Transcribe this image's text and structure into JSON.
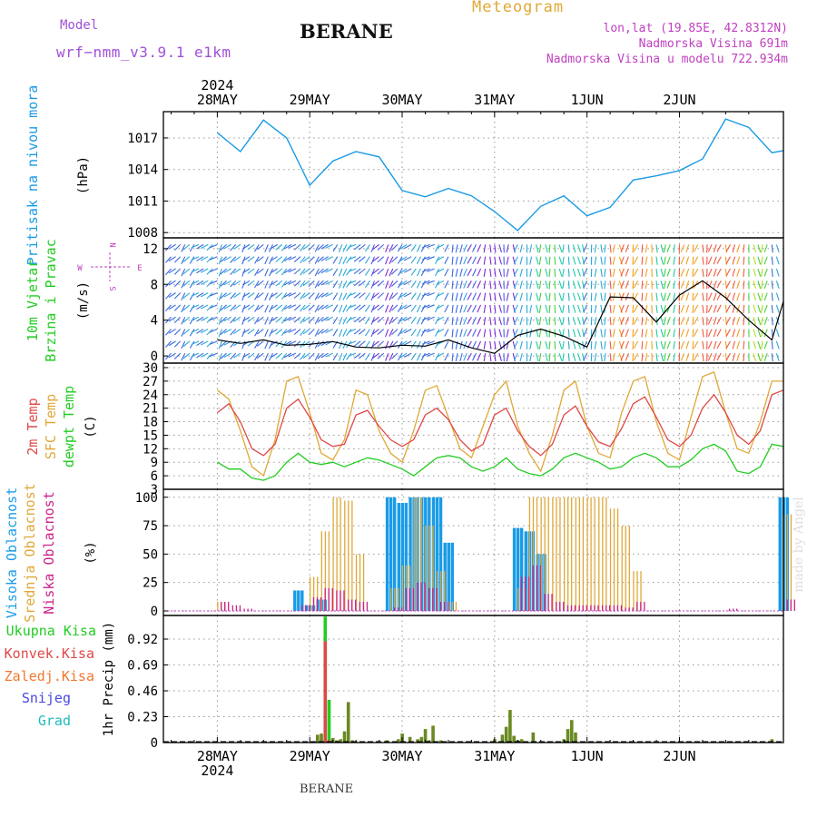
{
  "header": {
    "model_label": "Model",
    "model_name": "wrf−nmm_v3.9.1  e1km",
    "title": "BERANE",
    "meteogram": "Meteogram",
    "lonlat": "lon,lat (19.85E, 42.8312N)",
    "elevation": "Nadmorska Visina 691m",
    "elevation_model": "Nadmorska Visina u modelu 722.934m",
    "watermark": "made by Angel",
    "footer_station": "BERANE"
  },
  "time_axis": {
    "year": "2024",
    "day_labels": [
      "28MAY",
      "29MAY",
      "30MAY",
      "31MAY",
      "1JUN",
      "2JUN"
    ]
  },
  "colors": {
    "pressure": "#1a9be6",
    "sfc_temp": "#e0a838",
    "temp2m": "#e04848",
    "dewpt": "#22cc22",
    "high_cloud": "#1a9be6",
    "mid_cloud": "#e0a838",
    "low_cloud": "#cc2288",
    "total_precip": "#22cc22",
    "conv_precip": "#e04848",
    "frozen_precip": "#f07830",
    "snow": "#4848e0",
    "graupel": "#22bbbb",
    "wind_speed": "#000000"
  },
  "chart_data": [
    {
      "type": "line",
      "name": "pressure",
      "ylabel_color": "Pritisak na nivou mora",
      "unit": "(hPa)",
      "yticks": [
        1008,
        1011,
        1014,
        1017
      ],
      "ylim": [
        1007.5,
        1019.5
      ],
      "x_hours": [
        0,
        6,
        12,
        18,
        24,
        30,
        36,
        42,
        48,
        54,
        60,
        66,
        72,
        78,
        84,
        90,
        96,
        102,
        108,
        114,
        120,
        126,
        132,
        138,
        144,
        147
      ],
      "series": [
        {
          "values": [
            1017.5,
            1015.7,
            1018.7,
            1017.0,
            1012.5,
            1014.8,
            1015.7,
            1015.2,
            1012.0,
            1011.4,
            1012.2,
            1011.5,
            1010.0,
            1008.2,
            1010.5,
            1011.5,
            1009.6,
            1010.4,
            1013.0,
            1013.4,
            1013.9,
            1015.0,
            1018.8,
            1018.0,
            1015.6,
            1015.8
          ]
        }
      ],
      "grid": true
    },
    {
      "type": "line",
      "name": "wind",
      "ylabel_color": [
        "10m Vjetar",
        "Brzina i Pravac"
      ],
      "unit": "(m/s)",
      "compass_labels": [
        "N",
        "E",
        "S",
        "W"
      ],
      "yticks": [
        0,
        4,
        8,
        12
      ],
      "ylim": [
        -0.8,
        13.2
      ],
      "x_hours": [
        0,
        6,
        12,
        18,
        24,
        30,
        36,
        42,
        48,
        54,
        60,
        66,
        72,
        78,
        84,
        90,
        96,
        102,
        108,
        114,
        120,
        126,
        132,
        138,
        144,
        147
      ],
      "series": [
        {
          "name": "speed",
          "values": [
            1.8,
            1.4,
            1.8,
            1.2,
            1.3,
            1.6,
            1.0,
            0.9,
            1.2,
            1.1,
            1.8,
            0.9,
            0.3,
            2.3,
            3.0,
            2.2,
            1.0,
            6.6,
            6.5,
            3.8,
            6.8,
            8.4,
            6.5,
            4.0,
            1.8,
            6.1
          ]
        }
      ],
      "grid": true
    },
    {
      "type": "line",
      "name": "temperature",
      "ylabel_color": [
        "2m Temp",
        "SFC Temp",
        "dewpt Temp"
      ],
      "unit": "(C)",
      "yticks": [
        3,
        6,
        9,
        12,
        15,
        18,
        21,
        24,
        27,
        30
      ],
      "ylim": [
        3,
        31
      ],
      "x_hours": [
        0,
        3,
        6,
        9,
        12,
        15,
        18,
        21,
        24,
        27,
        30,
        33,
        36,
        39,
        42,
        45,
        48,
        51,
        54,
        57,
        60,
        63,
        66,
        69,
        72,
        75,
        78,
        81,
        84,
        87,
        90,
        93,
        96,
        99,
        102,
        105,
        108,
        111,
        114,
        117,
        120,
        123,
        126,
        129,
        132,
        135,
        138,
        141,
        144,
        147
      ],
      "series": [
        {
          "name": "SFC Temp",
          "values": [
            25,
            23,
            16,
            8,
            6,
            14,
            27,
            28,
            20,
            11,
            9.5,
            14,
            25,
            24,
            16,
            11,
            9,
            16,
            25,
            26,
            19,
            12,
            10,
            17,
            24,
            27,
            17,
            11,
            7,
            15,
            25,
            27,
            17,
            11,
            10,
            20,
            27,
            28,
            18,
            11,
            9.5,
            19,
            28,
            29,
            20,
            12,
            11,
            18,
            27,
            27
          ]
        },
        {
          "name": "2m Temp",
          "values": [
            20,
            22,
            18,
            12,
            10.5,
            13,
            21,
            23,
            19,
            14,
            12.5,
            13,
            19.5,
            20.5,
            17,
            14,
            12.5,
            14,
            19.5,
            21,
            18.5,
            14,
            11.5,
            13,
            19.5,
            21,
            16,
            12.5,
            10.5,
            13,
            19.5,
            21.5,
            17,
            13.5,
            12.5,
            16.5,
            22,
            23.5,
            19,
            14,
            12.5,
            15,
            21,
            24,
            20,
            15,
            13,
            16,
            24,
            25
          ]
        },
        {
          "name": "dewpt Temp",
          "values": [
            9,
            7.5,
            7.5,
            5.5,
            5,
            6,
            9,
            11,
            9,
            8.5,
            9,
            8,
            9,
            10,
            9.5,
            8.5,
            7.5,
            6,
            8,
            10,
            10.5,
            10,
            8,
            7,
            8,
            10,
            7.5,
            6.5,
            6,
            7.5,
            10,
            11,
            10,
            9,
            7.5,
            8,
            10,
            11,
            10,
            8,
            8,
            9.5,
            12,
            13,
            11.5,
            7,
            6.5,
            8,
            13,
            12.5
          ]
        }
      ],
      "grid": true
    },
    {
      "type": "bar",
      "name": "cloud",
      "ylabel_color": [
        "Visoka Oblacnost",
        "Srednja Oblacnost",
        "Niska Oblacnost"
      ],
      "unit": "(%)",
      "yticks": [
        0,
        25,
        50,
        75,
        100
      ],
      "ylim": [
        -4,
        107
      ],
      "x_hours": [
        0,
        3,
        6,
        9,
        12,
        15,
        18,
        21,
        24,
        27,
        30,
        33,
        36,
        39,
        42,
        45,
        48,
        51,
        54,
        57,
        60,
        63,
        66,
        69,
        72,
        75,
        78,
        81,
        84,
        87,
        90,
        93,
        96,
        99,
        102,
        105,
        108,
        111,
        114,
        117,
        120,
        123,
        126,
        129,
        132,
        135,
        138,
        141,
        144,
        147
      ],
      "series": [
        {
          "name": "Visoka Oblacnost",
          "values": [
            0,
            0,
            0,
            0,
            0,
            0,
            0,
            18,
            5,
            10,
            0,
            0,
            0,
            0,
            0,
            100,
            95,
            100,
            100,
            100,
            60,
            0,
            0,
            0,
            0,
            0,
            73,
            70,
            50,
            0,
            0,
            0,
            0,
            0,
            0,
            0,
            0,
            0,
            0,
            0,
            0,
            0,
            0,
            0,
            0,
            0,
            0,
            0,
            0,
            100
          ]
        },
        {
          "name": "Srednja Oblacnost",
          "values": [
            8,
            0,
            0,
            0,
            0,
            0,
            0,
            0,
            30,
            70,
            100,
            97,
            50,
            0,
            0,
            20,
            40,
            100,
            75,
            35,
            8,
            0,
            0,
            0,
            0,
            0,
            20,
            100,
            100,
            100,
            100,
            100,
            100,
            100,
            90,
            75,
            35,
            0,
            0,
            0,
            0,
            0,
            0,
            0,
            0,
            0,
            0,
            0,
            0,
            85
          ]
        },
        {
          "name": "Niska Oblacnost",
          "values": [
            8,
            5,
            2,
            0,
            0,
            0,
            0,
            5,
            12,
            20,
            18,
            10,
            8,
            0,
            0,
            3,
            20,
            25,
            20,
            8,
            0,
            0,
            0,
            0,
            0,
            0,
            30,
            40,
            15,
            8,
            5,
            5,
            5,
            5,
            5,
            3,
            8,
            0,
            0,
            0,
            0,
            0,
            0,
            0,
            2,
            0,
            0,
            0,
            0,
            10
          ]
        }
      ],
      "grid": true
    },
    {
      "type": "bar",
      "name": "precipitation",
      "ylabel_color": [
        "Ukupna Kisa",
        "Konvek.Kisa",
        "Zaledj.Kisa",
        "Snijeg",
        "Grad"
      ],
      "unit": "1hr Precip (mm)",
      "yticks": [
        0,
        0.23,
        0.46,
        0.69,
        0.92
      ],
      "ylim": [
        0,
        1.13
      ],
      "x_hours": [
        26,
        27,
        28,
        29,
        30,
        31,
        32,
        33,
        34,
        35,
        36,
        44,
        47,
        48,
        50,
        52,
        53,
        54,
        55,
        56,
        57,
        58,
        72,
        74,
        75,
        76,
        77,
        78,
        79,
        82,
        90,
        91,
        92,
        93,
        144
      ],
      "series": [
        {
          "name": "Ukupna Kisa",
          "values": [
            0.07,
            0.08,
            1.12,
            0.38,
            0.04,
            0.02,
            0.03,
            0.1,
            0.36,
            0.02,
            0.01,
            0.02,
            0.03,
            0.08,
            0.05,
            0.03,
            0.05,
            0.12,
            0.02,
            0.15,
            0.01,
            0.02,
            0.03,
            0.07,
            0.14,
            0.29,
            0.06,
            0.02,
            0.03,
            0.09,
            0.03,
            0.12,
            0.2,
            0.09,
            0.03
          ]
        },
        {
          "name": "Konvek.Kisa",
          "values": [
            0,
            0,
            0.9,
            0.02,
            0,
            0,
            0,
            0,
            0,
            0,
            0,
            0,
            0,
            0,
            0,
            0,
            0,
            0,
            0,
            0,
            0,
            0,
            0,
            0,
            0,
            0,
            0,
            0,
            0,
            0,
            0,
            0,
            0,
            0,
            0
          ]
        }
      ],
      "grid": true
    }
  ]
}
